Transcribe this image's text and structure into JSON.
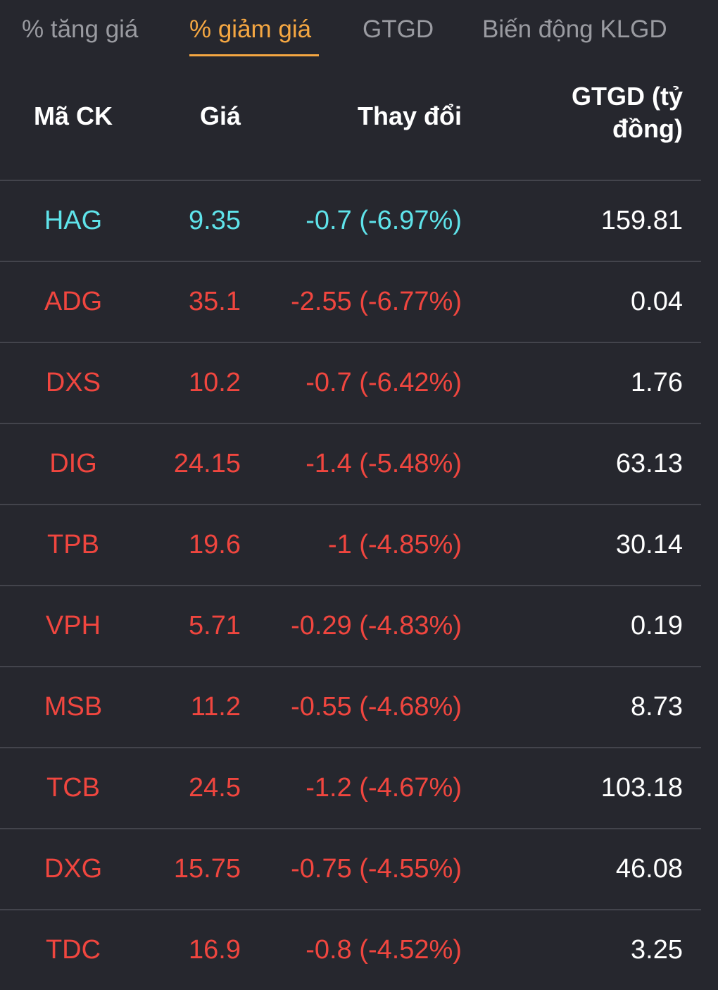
{
  "tabs": [
    {
      "label": "% tăng giá",
      "active": false
    },
    {
      "label": "% giảm giá",
      "active": true
    },
    {
      "label": "GTGD",
      "active": false
    },
    {
      "label": "Biến động KLGD",
      "active": false
    }
  ],
  "columns": {
    "symbol": "Mã CK",
    "price": "Giá",
    "change": "Thay đổi",
    "value_line1": "GTGD (tỷ",
    "value_line2": "đồng)"
  },
  "colors": {
    "floor": "#5fe3ea",
    "down": "#f0463f",
    "neutral": "#ffffff",
    "accent": "#f5a742"
  },
  "rows": [
    {
      "symbol": "HAG",
      "price": "9.35",
      "change": "-0.7 (-6.97%)",
      "value": "159.81",
      "status": "floor"
    },
    {
      "symbol": "ADG",
      "price": "35.1",
      "change": "-2.55 (-6.77%)",
      "value": "0.04",
      "status": "down"
    },
    {
      "symbol": "DXS",
      "price": "10.2",
      "change": "-0.7 (-6.42%)",
      "value": "1.76",
      "status": "down"
    },
    {
      "symbol": "DIG",
      "price": "24.15",
      "change": "-1.4 (-5.48%)",
      "value": "63.13",
      "status": "down"
    },
    {
      "symbol": "TPB",
      "price": "19.6",
      "change": "-1 (-4.85%)",
      "value": "30.14",
      "status": "down"
    },
    {
      "symbol": "VPH",
      "price": "5.71",
      "change": "-0.29 (-4.83%)",
      "value": "0.19",
      "status": "down"
    },
    {
      "symbol": "MSB",
      "price": "11.2",
      "change": "-0.55 (-4.68%)",
      "value": "8.73",
      "status": "down"
    },
    {
      "symbol": "TCB",
      "price": "24.5",
      "change": "-1.2 (-4.67%)",
      "value": "103.18",
      "status": "down"
    },
    {
      "symbol": "DXG",
      "price": "15.75",
      "change": "-0.75 (-4.55%)",
      "value": "46.08",
      "status": "down"
    },
    {
      "symbol": "TDC",
      "price": "16.9",
      "change": "-0.8 (-4.52%)",
      "value": "3.25",
      "status": "down"
    }
  ]
}
